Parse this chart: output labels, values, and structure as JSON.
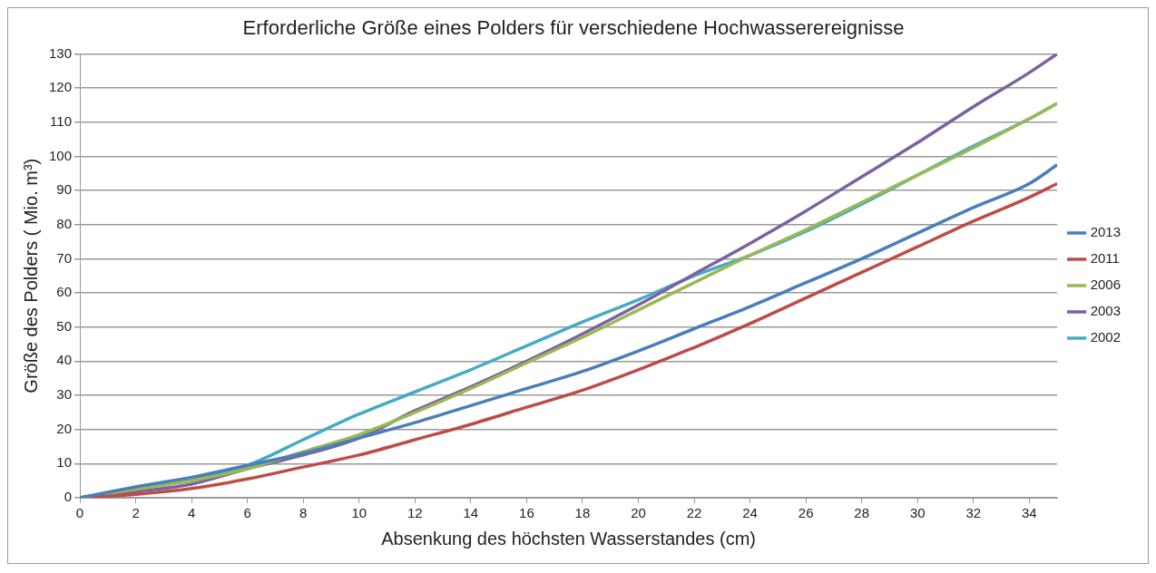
{
  "chart_data": {
    "type": "line",
    "title": "Erforderliche Größe eines Polders für verschiedene Hochwasserereignisse",
    "xlabel": "Absenkung des höchsten Wasserstandes (cm)",
    "ylabel": "Größe des Polders ( Mio. m³)",
    "x": [
      0,
      2,
      4,
      6,
      8,
      10,
      12,
      14,
      16,
      18,
      20,
      22,
      24,
      26,
      28,
      30,
      32,
      34,
      35
    ],
    "series": [
      {
        "name": "2013",
        "color": "#4a7ebb",
        "values": [
          0,
          3.2,
          6,
          9.5,
          13,
          17.5,
          22,
          27,
          32,
          37,
          43,
          49.5,
          56,
          63,
          70,
          77.5,
          85,
          92,
          97.5
        ]
      },
      {
        "name": "2011",
        "color": "#be4b48",
        "values": [
          0,
          1,
          2.7,
          5.5,
          9,
          12.5,
          17,
          21.5,
          26.5,
          31.5,
          37.5,
          44,
          51,
          58.5,
          66,
          73.5,
          81,
          88,
          92
        ]
      },
      {
        "name": "2006",
        "color": "#98b954",
        "values": [
          0,
          2.5,
          5,
          8.5,
          13.5,
          18.5,
          25,
          32,
          39.5,
          47,
          55,
          63,
          71,
          78.5,
          86.5,
          94.5,
          102.5,
          111,
          115.5
        ]
      },
      {
        "name": "2003",
        "color": "#7d60a0",
        "values": [
          0,
          1.8,
          4,
          8.5,
          12.5,
          17.5,
          25.5,
          32.5,
          40,
          48,
          56.5,
          65.5,
          74.5,
          84,
          94,
          104,
          114.5,
          124.5,
          130
        ]
      },
      {
        "name": "2002",
        "color": "#46aac5",
        "values": [
          0,
          2.5,
          5.5,
          9.5,
          17,
          24.5,
          31,
          37.5,
          44.5,
          51.5,
          58,
          65,
          71,
          78,
          86,
          94.5,
          103,
          111,
          115.5
        ]
      }
    ],
    "xlim": [
      0,
      35
    ],
    "xticks": [
      0,
      2,
      4,
      6,
      8,
      10,
      12,
      14,
      16,
      18,
      20,
      22,
      24,
      26,
      28,
      30,
      32,
      34
    ],
    "ylim": [
      0,
      130
    ],
    "yticks": [
      0,
      10,
      20,
      30,
      40,
      50,
      60,
      70,
      80,
      90,
      100,
      110,
      120,
      130
    ],
    "grid": "y",
    "legend": "right",
    "marker": "none",
    "line_style": "solid"
  }
}
